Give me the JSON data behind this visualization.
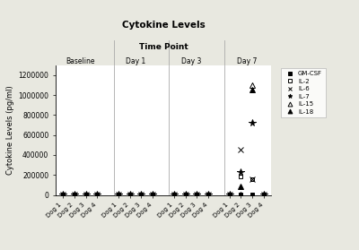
{
  "title": "Cytokine Levels",
  "xlabel_top": "Time Point",
  "ylabel": "Cytokine Levels (pg/ml)",
  "ylim": [
    0,
    1300000
  ],
  "yticks": [
    0,
    200000,
    400000,
    600000,
    800000,
    1000000,
    1200000
  ],
  "background_color": "#e8e8e0",
  "plot_bg_color": "#ffffff",
  "header_color": "#d8d8d0",
  "groups": [
    "Baseline",
    "Day 1",
    "Day 3",
    "Day 7"
  ],
  "dogs": [
    "Dog 1",
    "Dog 2",
    "Dog 3",
    "Dog 4"
  ],
  "cytokines": [
    "GM-CSF",
    "IL-2",
    "IL-6",
    "IL-7",
    "IL-15",
    "IL-18"
  ],
  "data": {
    "GM-CSF": {
      "Baseline": {
        "Dog 1": 5000,
        "Dog 2": 3000,
        "Dog 3": 4000,
        "Dog 4": 3500
      },
      "Day 1": {
        "Dog 1": 4000,
        "Dog 2": 3500,
        "Dog 3": 4500,
        "Dog 4": 3000
      },
      "Day 3": {
        "Dog 1": 3500,
        "Dog 2": 4000,
        "Dog 3": 3000,
        "Dog 4": 4500
      },
      "Day 7": {
        "Dog 1": 4000,
        "Dog 2": 3000,
        "Dog 3": 4000,
        "Dog 4": 5000
      }
    },
    "IL-2": {
      "Baseline": {
        "Dog 1": 3000,
        "Dog 2": 2000,
        "Dog 3": 3500,
        "Dog 4": 2500
      },
      "Day 1": {
        "Dog 1": 2500,
        "Dog 2": 3000,
        "Dog 3": 2000,
        "Dog 4": 3500
      },
      "Day 3": {
        "Dog 1": 3000,
        "Dog 2": 2500,
        "Dog 3": 3500,
        "Dog 4": 2000
      },
      "Day 7": {
        "Dog 1": 2000,
        "Dog 2": 185000,
        "Dog 3": 160000,
        "Dog 4": 3000
      }
    },
    "IL-6": {
      "Baseline": {
        "Dog 1": 2000,
        "Dog 2": 1500,
        "Dog 3": 2500,
        "Dog 4": 2000
      },
      "Day 1": {
        "Dog 1": 1500,
        "Dog 2": 2000,
        "Dog 3": 1500,
        "Dog 4": 2500
      },
      "Day 3": {
        "Dog 1": 2000,
        "Dog 2": 1500,
        "Dog 3": 2000,
        "Dog 4": 1500
      },
      "Day 7": {
        "Dog 1": 2000,
        "Dog 2": 450000,
        "Dog 3": 155000,
        "Dog 4": 2500
      }
    },
    "IL-7": {
      "Baseline": {
        "Dog 1": 4000,
        "Dog 2": 3000,
        "Dog 3": 5000,
        "Dog 4": 3500
      },
      "Day 1": {
        "Dog 1": 3500,
        "Dog 2": 4000,
        "Dog 3": 3000,
        "Dog 4": 4500
      },
      "Day 3": {
        "Dog 1": 4000,
        "Dog 2": 3500,
        "Dog 3": 4500,
        "Dog 4": 3000
      },
      "Day 7": {
        "Dog 1": 3500,
        "Dog 2": 230000,
        "Dog 3": 720000,
        "Dog 4": 4000
      }
    },
    "IL-15": {
      "Baseline": {
        "Dog 1": 3000,
        "Dog 2": 2500,
        "Dog 3": 4000,
        "Dog 4": 3000
      },
      "Day 1": {
        "Dog 1": 3500,
        "Dog 2": 3000,
        "Dog 3": 2500,
        "Dog 4": 4000
      },
      "Day 3": {
        "Dog 1": 2500,
        "Dog 2": 3500,
        "Dog 3": 3000,
        "Dog 4": 2500
      },
      "Day 7": {
        "Dog 1": 3000,
        "Dog 2": 3500,
        "Dog 3": 1100000,
        "Dog 4": 2500
      }
    },
    "IL-18": {
      "Baseline": {
        "Dog 1": 6000,
        "Dog 2": 5000,
        "Dog 3": 7000,
        "Dog 4": 5500
      },
      "Day 1": {
        "Dog 1": 5500,
        "Dog 2": 6000,
        "Dog 3": 5000,
        "Dog 4": 6500
      },
      "Day 3": {
        "Dog 1": 6000,
        "Dog 2": 5500,
        "Dog 3": 6500,
        "Dog 4": 5000
      },
      "Day 7": {
        "Dog 1": 6000,
        "Dog 2": 90000,
        "Dog 3": 1050000,
        "Dog 4": 10000
      }
    }
  },
  "legend_markers": [
    {
      "label": "GM-CSF",
      "marker": "s",
      "fillstyle": "full"
    },
    {
      "label": "IL-2",
      "marker": "s",
      "fillstyle": "none"
    },
    {
      "label": "IL-6",
      "marker": "x",
      "fillstyle": "full"
    },
    {
      "label": "IL-7",
      "marker": "*",
      "fillstyle": "full"
    },
    {
      "label": "IL-15",
      "marker": "^",
      "fillstyle": "none"
    },
    {
      "label": "IL-18",
      "marker": "^",
      "fillstyle": "full"
    }
  ],
  "marker_config": {
    "GM-CSF": {
      "marker": "s",
      "fillstyle": "full",
      "ms": 3.5
    },
    "IL-2": {
      "marker": "s",
      "fillstyle": "none",
      "ms": 3.5
    },
    "IL-6": {
      "marker": "x",
      "fillstyle": "full",
      "ms": 4.5
    },
    "IL-7": {
      "marker": "*",
      "fillstyle": "full",
      "ms": 5.5
    },
    "IL-15": {
      "marker": "^",
      "fillstyle": "none",
      "ms": 4.5
    },
    "IL-18": {
      "marker": "^",
      "fillstyle": "full",
      "ms": 4.5
    }
  }
}
